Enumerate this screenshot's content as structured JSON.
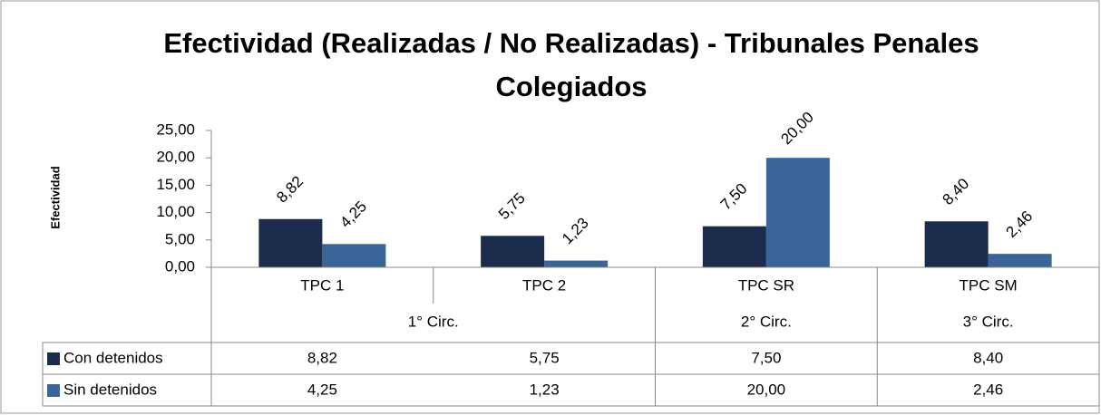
{
  "chart_data": {
    "type": "bar",
    "title": "Efectividad (Realizadas / No Realizadas) - Tribunales Penales Colegiados",
    "y_label": "Efectividad",
    "categories": [
      "TPC 1",
      "TPC 2",
      "TPC SR",
      "TPC SM"
    ],
    "category_groups": [
      "1° Circ.",
      "2° Circ.",
      "3° Circ."
    ],
    "group_sizes": [
      2,
      1,
      1
    ],
    "series": [
      {
        "name": "Con detenidos",
        "color": "#1b2c4d",
        "values": [
          8.82,
          5.75,
          7.5,
          8.4
        ],
        "value_labels": [
          "8,82",
          "5,75",
          "7,50",
          "8,40"
        ]
      },
      {
        "name": "Sin detenidos",
        "color": "#3b6499",
        "values": [
          4.25,
          1.23,
          20,
          2.46
        ],
        "value_labels": [
          "4,25",
          "1,23",
          "20,00",
          "2,46"
        ]
      }
    ],
    "ylim": [
      0,
      25
    ],
    "yticks": [
      {
        "value": 0,
        "label": "0,00"
      },
      {
        "value": 5,
        "label": "5,00"
      },
      {
        "value": 10,
        "label": "10,00"
      },
      {
        "value": 15,
        "label": "15,00"
      },
      {
        "value": 20,
        "label": "20,00"
      },
      {
        "value": 25,
        "label": "25,00"
      }
    ]
  }
}
